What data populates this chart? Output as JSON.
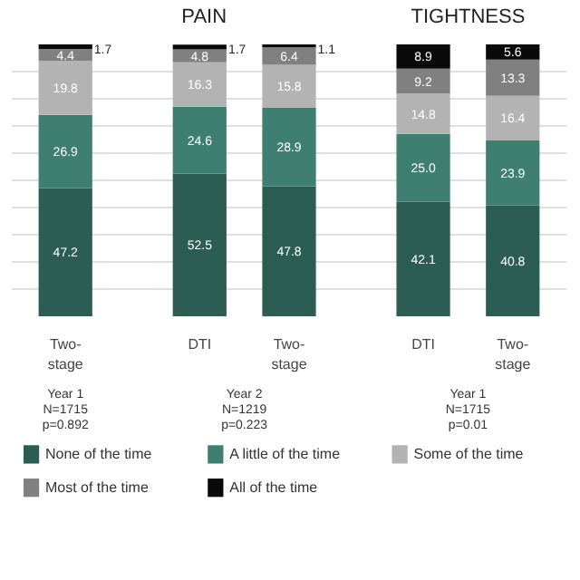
{
  "chart_data": {
    "type": "bar",
    "stacked": true,
    "categories": [
      "Two-stage",
      "DTI",
      "Two-stage",
      "DTI",
      "Two-stage"
    ],
    "series": [
      {
        "name": "None of the time",
        "color": "#2b5d52",
        "values": [
          47.2,
          52.5,
          47.8,
          42.1,
          40.8
        ],
        "value_labels": [
          "47.2",
          "52.5",
          "47.8",
          "42.1",
          "40.8"
        ]
      },
      {
        "name": "A little of the time",
        "color": "#3f7f72",
        "values": [
          26.9,
          24.6,
          28.9,
          25.0,
          23.9
        ],
        "value_labels": [
          "26.9",
          "24.6",
          "28.9",
          "25.0",
          "23.9"
        ]
      },
      {
        "name": "Some of the time",
        "color": "#b3b3b3",
        "values": [
          19.8,
          16.3,
          15.8,
          14.8,
          16.4
        ],
        "value_labels": [
          "19.8",
          "16.3",
          "15.8",
          "14.8",
          "16.4"
        ]
      },
      {
        "name": "Most of the time",
        "color": "#808080",
        "values": [
          4.4,
          4.8,
          6.4,
          9.2,
          13.3
        ],
        "value_labels": [
          "4.4",
          "4.8",
          "6.4",
          "9.2",
          "13.3"
        ]
      },
      {
        "name": "All of the time",
        "color": "#0a0a0a",
        "values": [
          1.7,
          1.7,
          1.1,
          8.9,
          5.6
        ],
        "value_labels": [
          "1.7",
          "1.7",
          "1.1",
          "8.9",
          "5.6"
        ]
      }
    ],
    "ylim": [
      0,
      100
    ],
    "tick_labels": "x",
    "grid": "y",
    "legend": "bottom",
    "data_labels": true,
    "annotations": [
      "PAIN",
      "TIGHTNESS",
      "Year 1\nN=1715\np=0.892",
      "Year 2\nN=1219\np=0.223",
      "Year 1\nN=1715\np=0.01"
    ]
  }
}
